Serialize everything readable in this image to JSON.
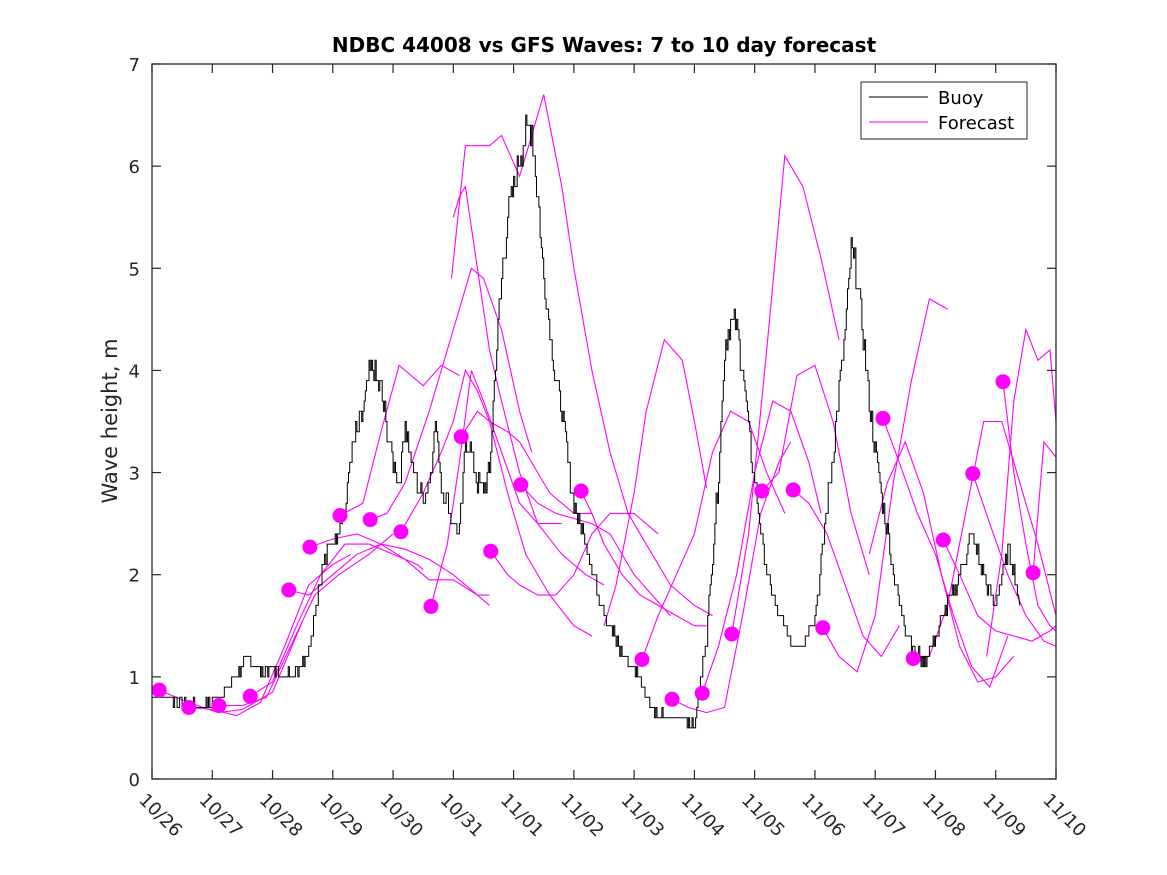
{
  "chart_data": {
    "type": "line",
    "title": "NDBC 44008 vs GFS Waves: 7 to 10 day forecast",
    "xlabel": "",
    "ylabel": "Wave height, m",
    "x_unit": "days since 10/26 00:00",
    "xlim": [
      0,
      15
    ],
    "ylim": [
      0,
      7
    ],
    "x_ticks": [
      0,
      1,
      2,
      3,
      4,
      5,
      6,
      7,
      8,
      9,
      10,
      11,
      12,
      13,
      14,
      15
    ],
    "x_tick_labels": [
      "10/26",
      "10/27",
      "10/28",
      "10/29",
      "10/30",
      "10/31",
      "11/01",
      "11/02",
      "11/03",
      "11/04",
      "11/05",
      "11/06",
      "11/07",
      "11/08",
      "11/09",
      "11/10"
    ],
    "y_ticks": [
      0,
      1,
      2,
      3,
      4,
      5,
      6,
      7
    ],
    "y_tick_labels": [
      "0",
      "1",
      "2",
      "3",
      "4",
      "5",
      "6",
      "7"
    ],
    "grid": false,
    "legend": {
      "position": "top-right",
      "entries": [
        {
          "label": "Buoy",
          "color": "#000000"
        },
        {
          "label": "Forecast",
          "color": "#ff00ff"
        }
      ]
    },
    "colors": {
      "buoy": "#000000",
      "forecast": "#ff00ff",
      "axes": "#262626"
    },
    "buoy": {
      "x": [
        0,
        0.25,
        0.5,
        0.75,
        1.0,
        1.2,
        1.4,
        1.6,
        1.8,
        2.0,
        2.2,
        2.4,
        2.6,
        2.8,
        2.95,
        3.0,
        3.1,
        3.2,
        3.3,
        3.4,
        3.5,
        3.6,
        3.7,
        3.8,
        3.9,
        4.0,
        4.1,
        4.2,
        4.3,
        4.4,
        4.5,
        4.6,
        4.7,
        4.8,
        4.9,
        5.0,
        5.1,
        5.2,
        5.3,
        5.4,
        5.5,
        5.6,
        5.7,
        5.8,
        5.9,
        6.0,
        6.1,
        6.2,
        6.3,
        6.4,
        6.5,
        6.6,
        6.7,
        6.8,
        6.9,
        7.0,
        7.2,
        7.4,
        7.6,
        7.8,
        8.0,
        8.2,
        8.4,
        8.6,
        8.8,
        9.0,
        9.2,
        9.4,
        9.5,
        9.6,
        9.7,
        9.8,
        9.9,
        10.0,
        10.2,
        10.4,
        10.6,
        10.8,
        11.0,
        11.1,
        11.2,
        11.3,
        11.4,
        11.5,
        11.6,
        11.7,
        11.8,
        11.9,
        12.0,
        12.2,
        12.4,
        12.6,
        12.8,
        13.0,
        13.2,
        13.4,
        13.6,
        13.8,
        14.0,
        14.1,
        14.2,
        14.3,
        14.4
      ],
      "y": [
        0.82,
        0.8,
        0.73,
        0.7,
        0.75,
        0.85,
        1.05,
        1.15,
        1.05,
        1.1,
        1.0,
        1.05,
        1.3,
        2.0,
        2.3,
        2.3,
        2.5,
        2.6,
        3.2,
        3.4,
        3.6,
        4.0,
        3.95,
        3.8,
        3.4,
        3.1,
        2.9,
        3.5,
        3.1,
        2.9,
        2.75,
        2.9,
        3.5,
        2.9,
        2.7,
        2.5,
        2.4,
        3.3,
        3.2,
        2.9,
        2.8,
        3.0,
        4.1,
        4.9,
        5.5,
        5.8,
        6.1,
        6.3,
        6.38,
        5.7,
        4.9,
        4.4,
        3.9,
        3.6,
        3.1,
        2.7,
        2.3,
        1.8,
        1.5,
        1.2,
        1.1,
        0.82,
        0.62,
        0.6,
        0.6,
        0.52,
        1.4,
        3.0,
        4.2,
        4.5,
        4.4,
        4.0,
        3.4,
        2.9,
        2.0,
        1.6,
        1.35,
        1.35,
        1.6,
        2.1,
        2.7,
        3.2,
        3.8,
        4.4,
        5.2,
        4.9,
        4.3,
        3.7,
        3.2,
        2.4,
        1.7,
        1.3,
        1.15,
        1.4,
        1.7,
        2.0,
        2.4,
        2.0,
        1.7,
        2.0,
        2.2,
        2.1,
        1.7
      ]
    },
    "forecasts": [
      {
        "x": [
          0.12,
          0.6,
          1.1,
          1.5,
          2.0,
          2.5
        ],
        "y": [
          0.87,
          0.75,
          0.65,
          0.68,
          0.85,
          1.55
        ]
      },
      {
        "x": [
          0.61,
          1.0,
          1.4,
          1.8,
          2.2,
          2.6,
          3.0,
          3.3
        ],
        "y": [
          0.7,
          0.68,
          0.62,
          0.75,
          1.3,
          1.9,
          2.1,
          2.2
        ]
      },
      {
        "x": [
          1.11,
          1.5,
          1.9,
          2.3,
          2.7,
          3.1,
          3.6,
          4.0
        ],
        "y": [
          0.72,
          0.72,
          0.8,
          1.3,
          1.8,
          2.0,
          2.2,
          2.4
        ]
      },
      {
        "x": [
          1.63,
          2.0,
          2.4,
          2.8,
          3.2,
          3.6,
          4.0,
          4.4,
          4.5
        ],
        "y": [
          0.81,
          0.95,
          1.5,
          2.0,
          2.3,
          2.3,
          2.2,
          2.1,
          2.05
        ]
      },
      {
        "x": [
          2.27,
          2.6,
          3.0,
          3.4,
          3.8,
          4.2,
          4.6,
          5.0,
          5.4,
          5.6
        ],
        "y": [
          1.85,
          1.8,
          2.0,
          2.2,
          2.3,
          2.25,
          2.15,
          2.0,
          1.8,
          1.7
        ]
      },
      {
        "x": [
          2.62,
          3.0,
          3.4,
          3.8,
          4.2,
          4.6,
          5.0,
          5.4,
          5.6
        ],
        "y": [
          2.27,
          2.35,
          2.4,
          2.3,
          2.15,
          1.95,
          1.95,
          1.8,
          1.8
        ]
      },
      {
        "x": [
          3.12,
          3.5,
          3.8,
          4.1,
          4.5,
          4.8,
          5.1
        ],
        "y": [
          2.58,
          2.7,
          3.4,
          4.05,
          3.85,
          4.05,
          3.95
        ]
      },
      {
        "x": [
          3.62,
          3.9,
          4.2,
          4.6,
          5.0,
          5.3,
          5.5,
          5.8,
          6.1,
          6.3
        ],
        "y": [
          2.54,
          2.6,
          2.9,
          3.6,
          4.4,
          5.0,
          4.9,
          4.4,
          3.6,
          3.2
        ]
      },
      {
        "x": [
          4.13,
          4.5,
          4.8,
          5.0,
          5.2,
          5.4,
          5.6,
          5.9,
          6.2,
          6.6,
          7.0,
          7.3
        ],
        "y": [
          2.42,
          2.8,
          3.2,
          3.5,
          4.0,
          3.8,
          3.5,
          2.8,
          2.2,
          1.8,
          1.5,
          1.4
        ]
      },
      {
        "x": [
          4.63,
          4.9,
          5.1,
          5.3,
          5.5,
          5.8,
          6.1,
          6.4,
          6.8
        ],
        "y": [
          1.69,
          2.3,
          3.1,
          4.0,
          3.7,
          3.2,
          2.7,
          2.5,
          2.5
        ]
      },
      {
        "x": [
          5.13,
          5.4,
          5.6,
          5.9,
          6.1,
          6.4,
          6.6,
          7.0,
          7.3
        ],
        "y": [
          3.35,
          3.6,
          3.5,
          3.4,
          3.3,
          3.0,
          2.8,
          2.6,
          2.6
        ]
      },
      {
        "x": [
          5.62,
          5.9,
          6.1,
          6.4,
          6.7,
          7.0,
          7.3,
          7.6,
          8.0,
          8.4
        ],
        "y": [
          2.23,
          2.0,
          1.9,
          1.8,
          1.8,
          2.0,
          2.4,
          2.6,
          2.6,
          2.4
        ]
      },
      {
        "x": [
          6.12,
          6.4,
          6.7,
          7.0,
          7.3,
          7.6,
          8.0,
          8.3,
          8.6
        ],
        "y": [
          2.88,
          2.7,
          2.6,
          2.55,
          2.5,
          2.4,
          2.0,
          1.8,
          1.6
        ]
      },
      {
        "x": [
          4.97,
          5.2,
          5.6,
          5.8,
          6.1,
          6.5,
          6.8,
          7.0,
          7.3,
          7.6,
          7.9,
          8.3,
          8.6,
          9.0,
          9.3
        ],
        "y": [
          4.9,
          6.2,
          6.2,
          6.3,
          5.9,
          6.7,
          5.8,
          5.0,
          4.0,
          3.2,
          2.6,
          2.2,
          1.9,
          1.7,
          1.6
        ]
      },
      {
        "x": [
          5.0,
          5.1,
          5.2,
          5.4,
          5.6,
          5.8,
          6.1,
          6.4,
          6.8,
          7.2,
          7.5
        ],
        "y": [
          5.5,
          5.7,
          5.8,
          5.0,
          4.2,
          3.7,
          3.0,
          2.5,
          2.2,
          2.0,
          1.9
        ]
      },
      {
        "x": [
          7.12,
          7.3,
          7.5,
          7.8,
          8.1,
          8.4,
          8.7,
          9.0,
          9.2
        ],
        "y": [
          2.82,
          2.6,
          2.3,
          2.0,
          1.8,
          1.7,
          1.6,
          1.5,
          1.5
        ]
      },
      {
        "x": [
          7.5,
          7.7,
          8.0,
          8.2,
          8.5,
          8.8,
          9.0,
          9.2
        ],
        "y": [
          1.5,
          1.9,
          2.8,
          3.6,
          4.3,
          4.1,
          3.5,
          2.85
        ]
      },
      {
        "x": [
          8.13,
          8.4,
          8.7,
          9.0,
          9.3,
          9.6,
          9.9,
          10.2,
          10.5
        ],
        "y": [
          1.17,
          1.6,
          2.0,
          2.4,
          3.2,
          3.6,
          3.5,
          3.0,
          2.6
        ]
      },
      {
        "x": [
          8.63,
          8.9,
          9.2,
          9.5,
          9.8,
          10.1,
          10.4,
          10.6
        ],
        "y": [
          0.78,
          0.7,
          0.65,
          0.7,
          1.6,
          2.6,
          3.1,
          3.3
        ]
      },
      {
        "x": [
          9.13,
          9.4,
          9.7,
          10.0,
          10.3,
          10.6,
          10.9,
          11.1
        ],
        "y": [
          0.84,
          1.3,
          2.0,
          3.0,
          3.7,
          3.6,
          3.1,
          2.6
        ]
      },
      {
        "x": [
          9.62,
          9.9,
          10.2,
          10.5,
          10.8,
          11.1,
          11.4
        ],
        "y": [
          1.42,
          2.4,
          4.2,
          6.1,
          5.8,
          5.1,
          4.3
        ]
      },
      {
        "x": [
          10.12,
          10.4,
          10.7,
          11.0,
          11.3,
          11.6,
          11.9
        ],
        "y": [
          2.82,
          3.0,
          3.95,
          4.05,
          3.5,
          2.6,
          2.0
        ]
      },
      {
        "x": [
          10.64,
          10.9,
          11.2,
          11.5,
          11.8,
          12.1,
          12.4
        ],
        "y": [
          2.83,
          2.7,
          2.4,
          1.9,
          1.4,
          1.2,
          1.5
        ]
      },
      {
        "x": [
          11.13,
          11.4,
          11.7,
          12.0,
          12.3,
          12.6,
          12.9,
          13.2
        ],
        "y": [
          1.48,
          1.2,
          1.05,
          1.6,
          2.9,
          3.9,
          4.7,
          4.6
        ]
      },
      {
        "x": [
          12.13,
          12.4,
          12.7,
          13.0,
          13.3,
          13.6,
          13.9,
          14.2
        ],
        "y": [
          3.53,
          3.1,
          2.6,
          2.2,
          1.6,
          1.1,
          0.9,
          1.4
        ]
      },
      {
        "x": [
          11.9,
          12.2,
          12.5,
          12.8,
          13.1,
          13.4,
          13.7,
          14.0,
          14.3
        ],
        "y": [
          2.2,
          2.9,
          3.3,
          2.8,
          2.0,
          1.3,
          0.95,
          1.0,
          1.2
        ]
      },
      {
        "x": [
          12.63,
          12.9,
          13.2,
          13.5,
          13.8,
          14.1,
          14.4,
          14.7,
          15.0
        ],
        "y": [
          1.18,
          1.2,
          1.7,
          2.6,
          3.5,
          3.5,
          2.9,
          2.3,
          1.6
        ]
      },
      {
        "x": [
          13.13,
          13.4,
          13.7,
          14.0,
          14.3,
          14.6,
          14.9,
          15.0
        ],
        "y": [
          2.34,
          2.0,
          1.6,
          1.45,
          1.4,
          1.35,
          1.45,
          1.5
        ]
      },
      {
        "x": [
          13.62,
          13.9,
          14.2,
          14.5,
          14.8,
          15.0
        ],
        "y": [
          2.99,
          2.5,
          2.0,
          1.6,
          1.35,
          1.3
        ]
      },
      {
        "x": [
          14.12,
          14.3,
          14.5,
          14.7,
          14.9,
          15.0
        ],
        "y": [
          3.89,
          3.0,
          2.3,
          1.7,
          1.5,
          1.45
        ]
      },
      {
        "x": [
          13.85,
          14.1,
          14.3,
          14.5,
          14.7,
          14.9,
          15.0
        ],
        "y": [
          1.2,
          2.2,
          3.7,
          4.4,
          4.1,
          4.2,
          3.5
        ]
      },
      {
        "x": [
          14.62,
          14.8,
          15.0
        ],
        "y": [
          2.02,
          3.3,
          3.15
        ]
      }
    ],
    "forecast_start_markers": {
      "x": [
        0.12,
        0.61,
        1.11,
        1.63,
        2.27,
        2.62,
        3.12,
        3.62,
        4.13,
        4.63,
        5.13,
        5.62,
        6.12,
        7.12,
        8.13,
        8.63,
        9.13,
        9.62,
        10.12,
        10.64,
        11.13,
        12.13,
        12.63,
        13.13,
        13.62,
        14.12,
        14.62
      ],
      "y": [
        0.87,
        0.7,
        0.72,
        0.81,
        1.85,
        2.27,
        2.58,
        2.54,
        2.42,
        1.69,
        3.35,
        2.23,
        2.88,
        2.82,
        1.17,
        0.78,
        0.84,
        1.42,
        2.82,
        2.83,
        1.48,
        3.53,
        1.18,
        2.34,
        2.99,
        3.89,
        2.02
      ]
    }
  }
}
